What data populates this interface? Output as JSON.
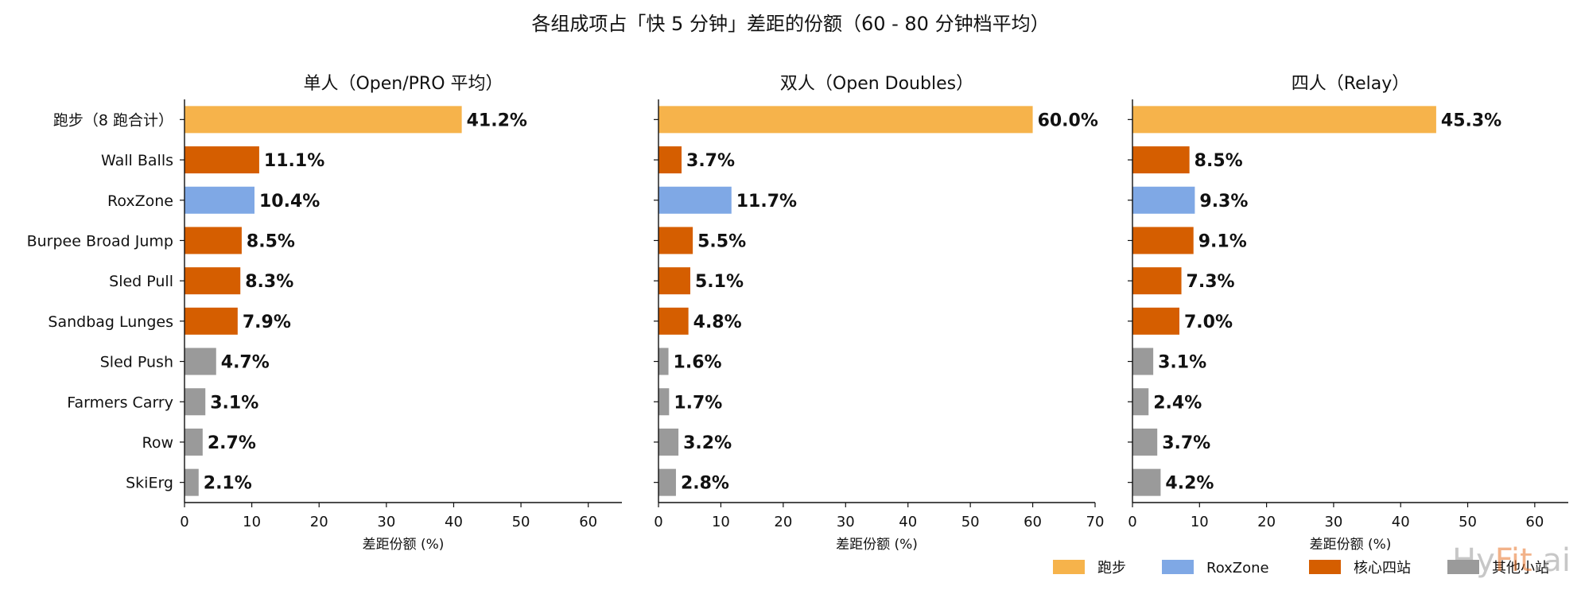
{
  "suptitle": "各组成项占「快 5 分钟」差距的份额（60 - 80 分钟档平均）",
  "colors": {
    "跑步": "#F6B34B",
    "RoxZone": "#7FA8E5",
    "核心四站": "#D55E00",
    "其他小站": "#9A9A9A"
  },
  "legend": [
    {
      "label": "跑步",
      "color_key": "跑步"
    },
    {
      "label": "RoxZone",
      "color_key": "RoxZone"
    },
    {
      "label": "核心四站",
      "color_key": "核心四站"
    },
    {
      "label": "其他小站",
      "color_key": "其他小站"
    }
  ],
  "legend_placement": "bottom-right",
  "watermark": {
    "prefix": "Hy",
    "accent": "Fit",
    "suffix": ".ai",
    "accent_color": "#E8742A"
  },
  "chart_data": [
    {
      "type": "bar",
      "orientation": "horizontal",
      "title": "单人（Open/PRO 平均）",
      "xlabel": "差距份额 (%)",
      "xlim": [
        0,
        65
      ],
      "xticks": [
        0,
        10,
        20,
        30,
        40,
        50,
        60
      ],
      "categories": [
        "跑步（8 跑合计）",
        "Wall Balls",
        "RoxZone",
        "Burpee Broad Jump",
        "Sled Pull",
        "Sandbag Lunges",
        "Sled Push",
        "Farmers Carry",
        "Row",
        "SkiErg"
      ],
      "groups": [
        "跑步",
        "核心四站",
        "RoxZone",
        "核心四站",
        "核心四站",
        "核心四站",
        "其他小站",
        "其他小站",
        "其他小站",
        "其他小站"
      ],
      "values": [
        41.2,
        11.1,
        10.4,
        8.5,
        8.3,
        7.9,
        4.7,
        3.1,
        2.7,
        2.1
      ],
      "value_labels": [
        "41.2%",
        "11.1%",
        "10.4%",
        "8.5%",
        "8.3%",
        "7.9%",
        "4.7%",
        "3.1%",
        "2.7%",
        "2.1%"
      ],
      "show_category_labels": true,
      "grid": false
    },
    {
      "type": "bar",
      "orientation": "horizontal",
      "title": "双人（Open Doubles）",
      "xlabel": "差距份额 (%)",
      "xlim": [
        0,
        70
      ],
      "xticks": [
        0,
        10,
        20,
        30,
        40,
        50,
        60,
        70
      ],
      "categories": [
        "跑步（8 跑合计）",
        "Wall Balls",
        "RoxZone",
        "Burpee Broad Jump",
        "Sled Pull",
        "Sandbag Lunges",
        "Sled Push",
        "Farmers Carry",
        "Row",
        "SkiErg"
      ],
      "groups": [
        "跑步",
        "核心四站",
        "RoxZone",
        "核心四站",
        "核心四站",
        "核心四站",
        "其他小站",
        "其他小站",
        "其他小站",
        "其他小站"
      ],
      "values": [
        60.0,
        3.7,
        11.7,
        5.5,
        5.1,
        4.8,
        1.6,
        1.7,
        3.2,
        2.8
      ],
      "value_labels": [
        "60.0%",
        "3.7%",
        "11.7%",
        "5.5%",
        "5.1%",
        "4.8%",
        "1.6%",
        "1.7%",
        "3.2%",
        "2.8%"
      ],
      "show_category_labels": false,
      "grid": false
    },
    {
      "type": "bar",
      "orientation": "horizontal",
      "title": "四人（Relay）",
      "xlabel": "差距份额 (%)",
      "xlim": [
        0,
        65
      ],
      "xticks": [
        0,
        10,
        20,
        30,
        40,
        50,
        60
      ],
      "categories": [
        "跑步（8 跑合计）",
        "Wall Balls",
        "RoxZone",
        "Burpee Broad Jump",
        "Sled Pull",
        "Sandbag Lunges",
        "Sled Push",
        "Farmers Carry",
        "Row",
        "SkiErg"
      ],
      "groups": [
        "跑步",
        "核心四站",
        "RoxZone",
        "核心四站",
        "核心四站",
        "核心四站",
        "其他小站",
        "其他小站",
        "其他小站",
        "其他小站"
      ],
      "values": [
        45.3,
        8.5,
        9.3,
        9.1,
        7.3,
        7.0,
        3.1,
        2.4,
        3.7,
        4.2
      ],
      "value_labels": [
        "45.3%",
        "8.5%",
        "9.3%",
        "9.1%",
        "7.3%",
        "7.0%",
        "3.1%",
        "2.4%",
        "3.7%",
        "4.2%"
      ],
      "show_category_labels": false,
      "grid": false
    }
  ]
}
